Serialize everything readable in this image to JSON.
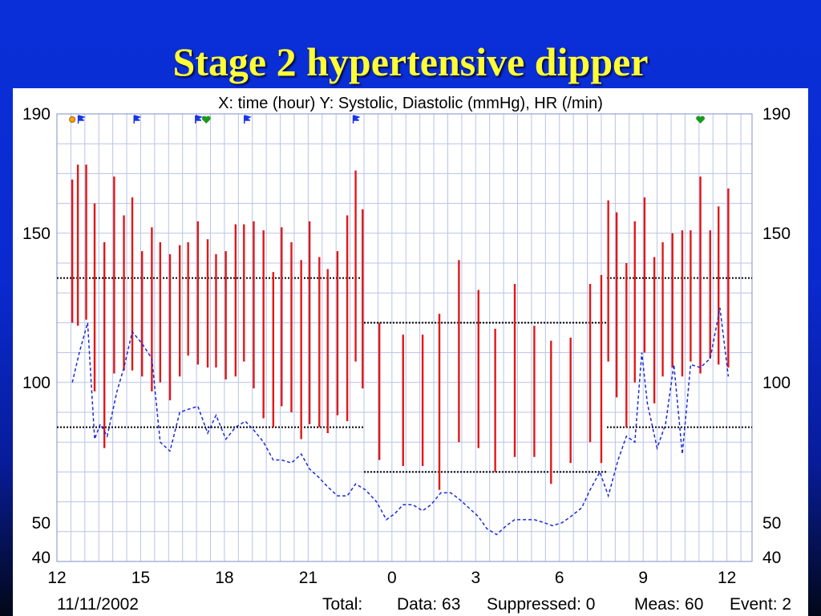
{
  "slide_title": "Stage 2 hypertensive dipper",
  "colors": {
    "title": "#ffff33",
    "systolic_diastolic_bars": "#e01818",
    "heart_rate_line": "#1a2bd6",
    "grid": "#b9c3e8",
    "threshold_lines": "#000000",
    "marker_flag": "#1a34e6",
    "marker_heart": "#1a9a1a",
    "marker_circle": "#ffa500"
  },
  "footer": {
    "date": "11/11/2002",
    "total_label": "Total:",
    "data_label": "Data: 63",
    "suppressed_label": "Suppressed: 0",
    "meas_label": "Meas: 60",
    "event_label": "Event: 2"
  },
  "chart_data": {
    "type": "bar",
    "title": "X: time (hour)  Y: Systolic, Diastolic (mmHg), HR (/min)",
    "x_start_hour": 12,
    "x_end_hour": 36.9,
    "x_tick_values": [
      12,
      15,
      18,
      21,
      24,
      27,
      30,
      33,
      36
    ],
    "x_tick_labels": [
      "12",
      "15",
      "18",
      "21",
      "0",
      "3",
      "6",
      "9",
      "12"
    ],
    "ylim": [
      40,
      190
    ],
    "y_tick_values": [
      190,
      150,
      100,
      50,
      40
    ],
    "y_tick_labels": [
      "190",
      "150",
      "100",
      "50",
      "40"
    ],
    "grid": true,
    "legend": "none",
    "series": [
      {
        "name": "Systolic",
        "values": [
          [
            12.55,
            168
          ],
          [
            12.75,
            173
          ],
          [
            13.05,
            173
          ],
          [
            13.35,
            160
          ],
          [
            13.7,
            147
          ],
          [
            14.05,
            169
          ],
          [
            14.4,
            156
          ],
          [
            14.7,
            162
          ],
          [
            15.05,
            144
          ],
          [
            15.4,
            152
          ],
          [
            15.7,
            147
          ],
          [
            16.05,
            143
          ],
          [
            16.4,
            146
          ],
          [
            16.7,
            147
          ],
          [
            17.05,
            154
          ],
          [
            17.4,
            148
          ],
          [
            17.7,
            143
          ],
          [
            18.05,
            144
          ],
          [
            18.4,
            153
          ],
          [
            18.7,
            153
          ],
          [
            19.05,
            154
          ],
          [
            19.4,
            151
          ],
          [
            19.75,
            137
          ],
          [
            20.05,
            152
          ],
          [
            20.4,
            147
          ],
          [
            20.75,
            141
          ],
          [
            21.05,
            154
          ],
          [
            21.4,
            142
          ],
          [
            21.7,
            138
          ],
          [
            22.05,
            144
          ],
          [
            22.4,
            156
          ],
          [
            22.7,
            171
          ],
          [
            22.95,
            158
          ],
          [
            23.55,
            120
          ],
          [
            24.4,
            116
          ],
          [
            25.1,
            116
          ],
          [
            25.7,
            123
          ],
          [
            26.4,
            141
          ],
          [
            27.1,
            131
          ],
          [
            27.7,
            118
          ],
          [
            28.4,
            133
          ],
          [
            29.1,
            119
          ],
          [
            29.7,
            114
          ],
          [
            30.4,
            115
          ],
          [
            31.1,
            133
          ],
          [
            31.5,
            136
          ],
          [
            31.75,
            161
          ],
          [
            32.05,
            157
          ],
          [
            32.4,
            140
          ],
          [
            32.7,
            154
          ],
          [
            33.05,
            162
          ],
          [
            33.4,
            142
          ],
          [
            33.7,
            147
          ],
          [
            34.05,
            150
          ],
          [
            34.4,
            151
          ],
          [
            34.7,
            151
          ],
          [
            35.05,
            169
          ],
          [
            35.4,
            151
          ],
          [
            35.7,
            159
          ],
          [
            36.05,
            165
          ]
        ]
      },
      {
        "name": "Diastolic",
        "values": [
          [
            12.55,
            120
          ],
          [
            12.75,
            119
          ],
          [
            13.05,
            121
          ],
          [
            13.35,
            97
          ],
          [
            13.7,
            78
          ],
          [
            14.05,
            103
          ],
          [
            14.4,
            104
          ],
          [
            14.7,
            104
          ],
          [
            15.05,
            102
          ],
          [
            15.4,
            97
          ],
          [
            15.7,
            100
          ],
          [
            16.05,
            94
          ],
          [
            16.4,
            102
          ],
          [
            16.7,
            109
          ],
          [
            17.05,
            106
          ],
          [
            17.4,
            105
          ],
          [
            17.7,
            105
          ],
          [
            18.05,
            101
          ],
          [
            18.4,
            102
          ],
          [
            18.7,
            107
          ],
          [
            19.05,
            98
          ],
          [
            19.4,
            88
          ],
          [
            19.75,
            85
          ],
          [
            20.05,
            92
          ],
          [
            20.4,
            90
          ],
          [
            20.75,
            81
          ],
          [
            21.05,
            86
          ],
          [
            21.4,
            85
          ],
          [
            21.7,
            83
          ],
          [
            22.05,
            89
          ],
          [
            22.4,
            87
          ],
          [
            22.7,
            107
          ],
          [
            22.95,
            98
          ],
          [
            23.55,
            74
          ],
          [
            24.4,
            72
          ],
          [
            25.1,
            72
          ],
          [
            25.7,
            64
          ],
          [
            26.4,
            80
          ],
          [
            27.1,
            78
          ],
          [
            27.7,
            70
          ],
          [
            28.4,
            75
          ],
          [
            29.1,
            75
          ],
          [
            29.7,
            66
          ],
          [
            30.4,
            73
          ],
          [
            31.1,
            80
          ],
          [
            31.5,
            73
          ],
          [
            31.75,
            107
          ],
          [
            32.05,
            95
          ],
          [
            32.4,
            85
          ],
          [
            32.7,
            100
          ],
          [
            33.05,
            110
          ],
          [
            33.4,
            93
          ],
          [
            33.7,
            102
          ],
          [
            34.05,
            105
          ],
          [
            34.4,
            102
          ],
          [
            34.7,
            107
          ],
          [
            35.05,
            103
          ],
          [
            35.4,
            108
          ],
          [
            35.7,
            106
          ],
          [
            36.05,
            105
          ]
        ]
      },
      {
        "name": "HR",
        "values": [
          [
            12.55,
            100
          ],
          [
            12.8,
            110
          ],
          [
            13.1,
            120
          ],
          [
            13.35,
            81
          ],
          [
            13.55,
            86
          ],
          [
            13.8,
            82
          ],
          [
            14.15,
            97
          ],
          [
            14.4,
            105
          ],
          [
            14.7,
            117
          ],
          [
            15.05,
            113
          ],
          [
            15.4,
            108
          ],
          [
            15.7,
            80
          ],
          [
            16.05,
            77
          ],
          [
            16.4,
            90
          ],
          [
            16.7,
            91
          ],
          [
            17.05,
            92
          ],
          [
            17.4,
            83
          ],
          [
            17.7,
            89
          ],
          [
            18.05,
            81
          ],
          [
            18.4,
            85
          ],
          [
            18.75,
            87
          ],
          [
            19.05,
            84
          ],
          [
            19.4,
            80
          ],
          [
            19.75,
            74
          ],
          [
            20.05,
            74
          ],
          [
            20.4,
            73
          ],
          [
            20.75,
            76
          ],
          [
            21.05,
            71
          ],
          [
            21.4,
            68
          ],
          [
            21.7,
            65
          ],
          [
            22.05,
            62
          ],
          [
            22.4,
            62
          ],
          [
            22.7,
            66
          ],
          [
            23.05,
            64
          ],
          [
            23.45,
            60
          ],
          [
            23.8,
            54
          ],
          [
            24.1,
            56
          ],
          [
            24.4,
            59
          ],
          [
            24.75,
            59
          ],
          [
            25.1,
            57
          ],
          [
            25.4,
            59
          ],
          [
            25.75,
            63
          ],
          [
            26.1,
            63
          ],
          [
            26.4,
            61
          ],
          [
            26.75,
            58
          ],
          [
            27.1,
            55
          ],
          [
            27.4,
            51
          ],
          [
            27.75,
            49
          ],
          [
            28.1,
            52
          ],
          [
            28.4,
            54
          ],
          [
            28.75,
            54
          ],
          [
            29.1,
            54
          ],
          [
            29.45,
            53
          ],
          [
            29.75,
            52
          ],
          [
            30.1,
            53
          ],
          [
            30.4,
            55
          ],
          [
            30.8,
            58
          ],
          [
            31.1,
            64
          ],
          [
            31.45,
            70
          ],
          [
            31.75,
            62
          ],
          [
            32.1,
            74
          ],
          [
            32.4,
            82
          ],
          [
            32.7,
            80
          ],
          [
            32.95,
            110
          ],
          [
            33.15,
            93
          ],
          [
            33.5,
            78
          ],
          [
            33.8,
            86
          ],
          [
            34.1,
            106
          ],
          [
            34.4,
            76
          ],
          [
            34.7,
            106
          ],
          [
            35.05,
            105
          ],
          [
            35.4,
            108
          ],
          [
            35.75,
            125
          ],
          [
            36.05,
            102
          ]
        ]
      }
    ],
    "threshold_segments": [
      {
        "x": [
          12,
          23.0
        ],
        "y": 135
      },
      {
        "x": [
          12,
          23.0
        ],
        "y": 85
      },
      {
        "x": [
          23.0,
          31.7
        ],
        "y": 120
      },
      {
        "x": [
          23.0,
          31.7
        ],
        "y": 70
      },
      {
        "x": [
          31.7,
          36.9
        ],
        "y": 135
      },
      {
        "x": [
          31.7,
          36.9
        ],
        "y": 85
      }
    ],
    "event_markers": [
      {
        "x": 12.55,
        "icon": "circle-marker-icon"
      },
      {
        "x": 12.85,
        "icon": "flag-icon"
      },
      {
        "x": 14.85,
        "icon": "flag-icon"
      },
      {
        "x": 17.05,
        "icon": "flag-icon"
      },
      {
        "x": 17.35,
        "icon": "heart-icon"
      },
      {
        "x": 18.8,
        "icon": "flag-icon"
      },
      {
        "x": 22.7,
        "icon": "flag-icon"
      },
      {
        "x": 35.05,
        "icon": "heart-icon"
      }
    ]
  }
}
